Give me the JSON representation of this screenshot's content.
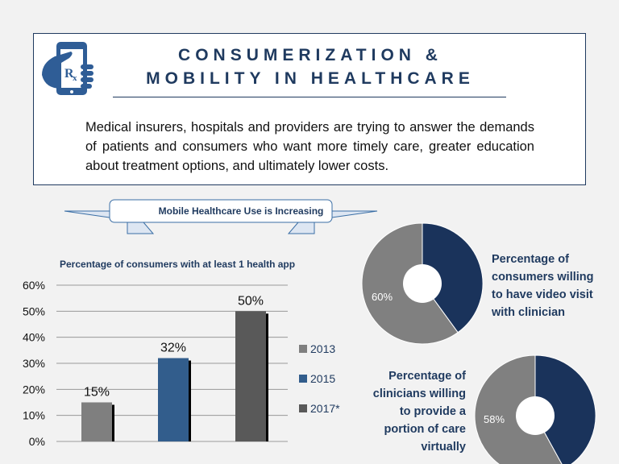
{
  "header": {
    "title_line1": "CONSUMERIZATION &",
    "title_line2": "MOBILITY IN HEALTHCARE",
    "icon": "phone-rx-icon",
    "description": "Medical insurers, hospitals and providers are trying to answer the demands of patients and consumers who want more timely care, greater education about treatment options, and ultimately lower costs."
  },
  "banner": {
    "label": "Mobile Healthcare Use is Increasing"
  },
  "chart_data": [
    {
      "type": "bar",
      "title": "Percentage of consumers with at least 1 health app",
      "categories": [
        "2013",
        "2015",
        "2017*"
      ],
      "values": [
        15,
        32,
        50
      ],
      "data_labels": [
        "15%",
        "32%",
        "50%"
      ],
      "ylim": [
        0,
        60
      ],
      "yticks": [
        "0%",
        "10%",
        "20%",
        "30%",
        "40%",
        "50%",
        "60%"
      ],
      "colors": [
        "#7f7f7f",
        "#325d8c",
        "#595959"
      ],
      "legend": [
        "2013",
        "2015",
        "2017*"
      ],
      "legend_position": "right",
      "grid": true
    },
    {
      "type": "pie",
      "variant": "donut",
      "title": "Percentage of consumers willing to have video visit with clinician",
      "slices": [
        {
          "value": 40,
          "color": "#1a335b"
        },
        {
          "value": 60,
          "label": "60%",
          "color": "#808080"
        }
      ]
    },
    {
      "type": "pie",
      "variant": "donut",
      "title": "Percentage of clinicians willing to provide a portion of care virtually",
      "slices": [
        {
          "value": 42,
          "color": "#1a335b"
        },
        {
          "value": 58,
          "label": "58%",
          "color": "#808080"
        }
      ]
    }
  ],
  "pie_texts": {
    "p1": [
      "Percentage of",
      "consumers willing",
      "to have video visit",
      "with clinician"
    ],
    "p2": [
      "Percentage of",
      "clinicians willing",
      "to provide a",
      "portion of care",
      "virtually"
    ]
  }
}
